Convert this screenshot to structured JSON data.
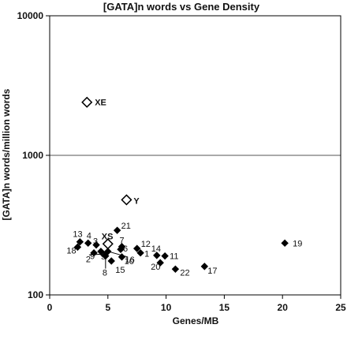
{
  "chart_data": {
    "type": "scatter",
    "title": "[GATA]n words vs Gene Density",
    "xlabel": "Genes/MB",
    "ylabel": "[GATA]n words/million words",
    "xlim": [
      0,
      25
    ],
    "ylim": [
      100,
      10000
    ],
    "yscale": "log",
    "x_ticks": [
      "0",
      "5",
      "10",
      "15",
      "20",
      "25"
    ],
    "y_ticks": [
      "100",
      "1000",
      "10000"
    ],
    "gridlines": [
      1000
    ],
    "series": [
      {
        "marker": "filled-diamond",
        "points": [
          {
            "label": "1",
            "x": 7.8,
            "y": 200
          },
          {
            "label": "2",
            "x": 4.6,
            "y": 196
          },
          {
            "label": "3",
            "x": 4.0,
            "y": 228
          },
          {
            "label": "4",
            "x": 3.3,
            "y": 235
          },
          {
            "label": "5",
            "x": 4.4,
            "y": 205
          },
          {
            "label": "6",
            "x": 6.1,
            "y": 212
          },
          {
            "label": "7",
            "x": 6.2,
            "y": 222
          },
          {
            "label": "8",
            "x": 4.8,
            "y": 190
          },
          {
            "label": "9",
            "x": 3.8,
            "y": 200
          },
          {
            "label": "10",
            "x": 5.0,
            "y": 205
          },
          {
            "label": "11",
            "x": 9.9,
            "y": 190
          },
          {
            "label": "12",
            "x": 7.5,
            "y": 215
          },
          {
            "label": "13",
            "x": 2.6,
            "y": 240
          },
          {
            "label": "14",
            "x": 9.2,
            "y": 192
          },
          {
            "label": "15",
            "x": 5.3,
            "y": 175
          },
          {
            "label": "16",
            "x": 6.2,
            "y": 187
          },
          {
            "label": "17",
            "x": 13.3,
            "y": 160
          },
          {
            "label": "18",
            "x": 2.4,
            "y": 220
          },
          {
            "label": "19",
            "x": 20.2,
            "y": 235
          },
          {
            "label": "20",
            "x": 9.5,
            "y": 170
          },
          {
            "label": "21",
            "x": 5.8,
            "y": 290
          },
          {
            "label": "22",
            "x": 10.8,
            "y": 153
          }
        ]
      },
      {
        "marker": "open-diamond",
        "points": [
          {
            "label": "XE",
            "x": 3.2,
            "y": 2400
          },
          {
            "label": "Y",
            "x": 6.6,
            "y": 480
          },
          {
            "label": "XS",
            "x": 5.0,
            "y": 232
          }
        ]
      }
    ],
    "colors": {
      "marker": "#000000",
      "grid": "#555555",
      "axis": "#000000",
      "background": "#ffffff"
    }
  }
}
